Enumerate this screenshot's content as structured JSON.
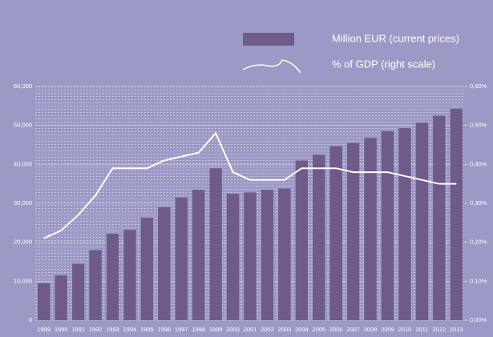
{
  "chart_data": {
    "type": "bar",
    "categories": [
      "1989",
      "1990",
      "1991",
      "1992",
      "1993",
      "1994",
      "1995",
      "1996",
      "1997",
      "1998",
      "1999",
      "2000",
      "2001",
      "2002",
      "2003",
      "2004",
      "2005",
      "2006",
      "2007",
      "2008",
      "2009",
      "2010",
      "2011",
      "2012",
      "2013"
    ],
    "series": [
      {
        "name": "Million EUR (current prices)",
        "type": "bar",
        "color": "#6f5b89",
        "values": [
          9500,
          11500,
          14500,
          18000,
          22200,
          23200,
          26300,
          29000,
          31500,
          33500,
          39000,
          32500,
          32800,
          33500,
          33800,
          41000,
          42500,
          44700,
          45500,
          46800,
          48500,
          49300,
          50700,
          52500,
          54300
        ]
      },
      {
        "name": "% of GDP (right scale)",
        "type": "line",
        "axis": "y2",
        "color": "#ffffff",
        "values": [
          0.21,
          0.23,
          0.27,
          0.32,
          0.39,
          0.39,
          0.39,
          0.41,
          0.42,
          0.43,
          0.48,
          0.38,
          0.36,
          0.36,
          0.36,
          0.39,
          0.39,
          0.39,
          0.38,
          0.38,
          0.38,
          0.37,
          0.36,
          0.35,
          0.35
        ]
      }
    ],
    "ylim": [
      0,
      60000
    ],
    "yticks": [
      0,
      {
        "value": 10000,
        "label": "10,000"
      },
      {
        "value": 20000,
        "label": "20,000"
      },
      {
        "value": 30000,
        "label": "30,000"
      },
      {
        "value": 40000,
        "label": "40,000"
      },
      {
        "value": 50000,
        "label": "50,000"
      },
      {
        "value": 60000,
        "label": "60,000"
      }
    ],
    "y2lim": [
      0,
      0.6
    ],
    "y2ticks": [
      {
        "value": 0,
        "label": "0,00%"
      },
      {
        "value": 0.1,
        "label": "0,10%"
      },
      {
        "value": 0.2,
        "label": "0,20%"
      },
      {
        "value": 0.3,
        "label": "0,30%"
      },
      {
        "value": 0.4,
        "label": "0,40%"
      },
      {
        "value": 0.5,
        "label": "0,50%"
      },
      {
        "value": 0.6,
        "label": "0,60%"
      }
    ],
    "grid": true
  }
}
